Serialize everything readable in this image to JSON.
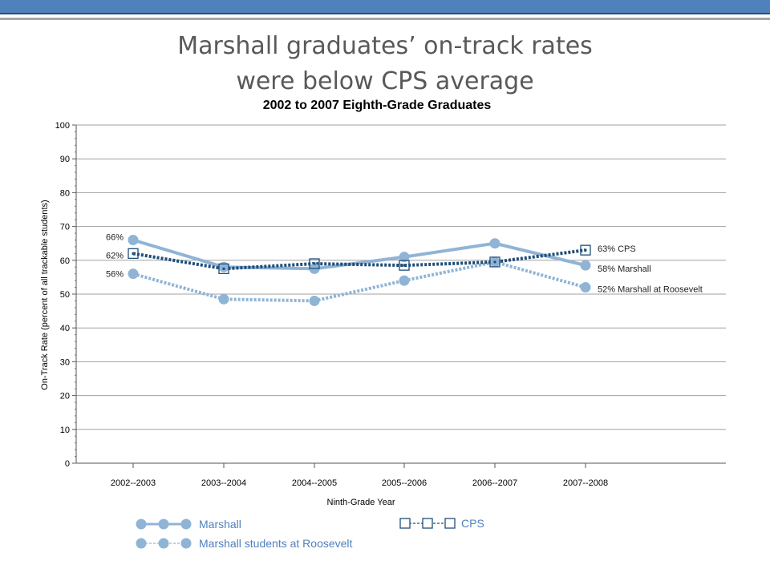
{
  "slide": {
    "title_line1": "Marshall graduates’ on-track rates",
    "title_line2": "were below CPS average"
  },
  "chart_data": {
    "type": "line",
    "title": "2002 to 2007 Eighth-Grade Graduates",
    "xlabel": "Ninth-Grade Year",
    "ylabel": "On-Track Rate (percent of all trackable students)",
    "ylim": [
      0,
      100
    ],
    "yticks": [
      "0",
      "10",
      "20",
      "30",
      "40",
      "50",
      "60",
      "70",
      "80",
      "90",
      "100"
    ],
    "categories": [
      "2002--2003",
      "2003--2004",
      "2004--2005",
      "2005--2006",
      "2006--2007",
      "2007--2008"
    ],
    "grid": true,
    "legend_position": "bottom",
    "series": [
      {
        "name": "Marshall",
        "values": [
          66,
          58,
          57.5,
          61,
          65,
          58.5
        ],
        "color": "#8fb4d6",
        "style": "solid",
        "marker": "circle",
        "start_label": "66%",
        "end_label": "58% Marshall"
      },
      {
        "name": "Marshall students at Roosevelt",
        "values": [
          56,
          48.5,
          48,
          54,
          59.5,
          52
        ],
        "color": "#8fb4d6",
        "style": "dotted",
        "marker": "circle",
        "start_label": "56%",
        "end_label": "52% Marshall at Roosevelt"
      },
      {
        "name": "CPS",
        "values": [
          62,
          57.5,
          59,
          58.5,
          59.5,
          63
        ],
        "color": "#1f4e79",
        "style": "dotted",
        "marker": "square",
        "start_label": "62%",
        "end_label": "63% CPS"
      }
    ]
  }
}
